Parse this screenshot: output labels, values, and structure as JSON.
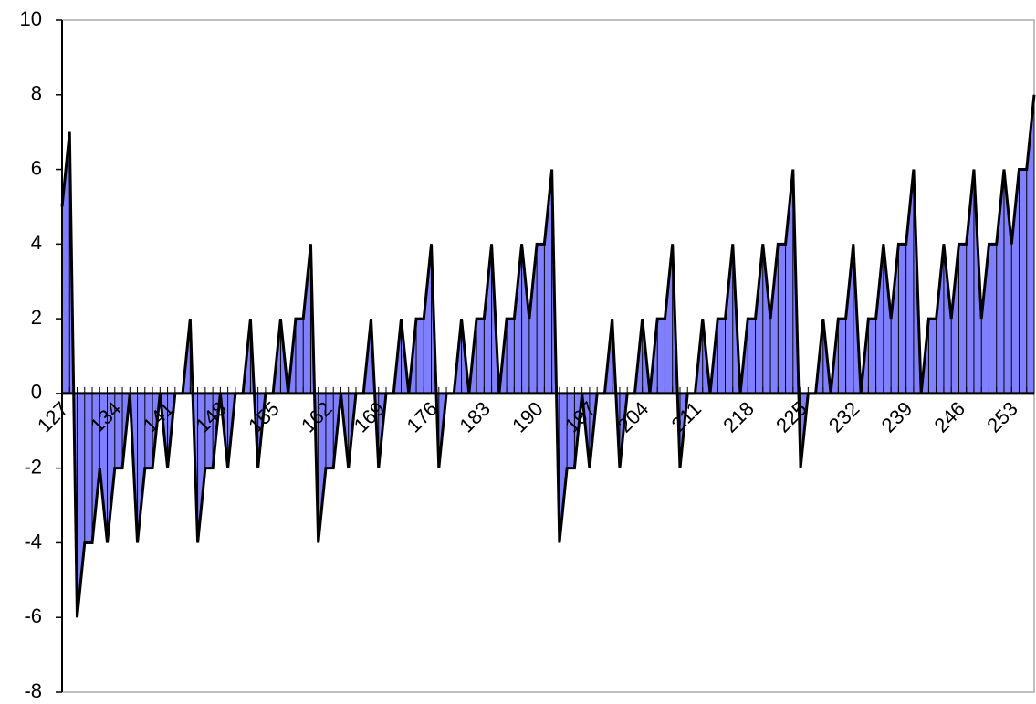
{
  "chart_data": {
    "type": "area",
    "categories": [
      "127",
      null,
      null,
      null,
      null,
      null,
      null,
      "134",
      null,
      null,
      null,
      null,
      null,
      null,
      "141",
      null,
      null,
      null,
      null,
      null,
      null,
      "148",
      null,
      null,
      null,
      null,
      null,
      null,
      "155",
      null,
      null,
      null,
      null,
      null,
      null,
      "162",
      null,
      null,
      null,
      null,
      null,
      null,
      "169",
      null,
      null,
      null,
      null,
      null,
      null,
      "176",
      null,
      null,
      null,
      null,
      null,
      null,
      "183",
      null,
      null,
      null,
      null,
      null,
      null,
      "190",
      null,
      null,
      null,
      null,
      null,
      null,
      "197",
      null,
      null,
      null,
      null,
      null,
      null,
      "204",
      null,
      null,
      null,
      null,
      null,
      null,
      "211",
      null,
      null,
      null,
      null,
      null,
      null,
      "218",
      null,
      null,
      null,
      null,
      null,
      null,
      "225",
      null,
      null,
      null,
      null,
      null,
      null,
      "232",
      null,
      null,
      null,
      null,
      null,
      null,
      "239",
      null,
      null,
      null,
      null,
      null,
      null,
      "246",
      null,
      null,
      null,
      null,
      null,
      null,
      "253",
      null,
      null,
      null
    ],
    "values": [
      5,
      7,
      -6,
      -4,
      -4,
      -2,
      -4,
      -2,
      -2,
      0,
      -4,
      -2,
      -2,
      0,
      -2,
      0,
      0,
      2,
      -4,
      -2,
      -2,
      0,
      -2,
      0,
      0,
      2,
      -2,
      0,
      0,
      2,
      0,
      2,
      2,
      4,
      -4,
      -2,
      -2,
      0,
      -2,
      0,
      0,
      2,
      -2,
      0,
      0,
      2,
      0,
      2,
      2,
      4,
      -2,
      0,
      0,
      2,
      0,
      2,
      2,
      4,
      0,
      2,
      2,
      4,
      2,
      4,
      4,
      6,
      -4,
      -2,
      -2,
      0,
      -2,
      0,
      0,
      2,
      -2,
      0,
      0,
      2,
      0,
      2,
      2,
      4,
      -2,
      0,
      0,
      2,
      0,
      2,
      2,
      4,
      0,
      2,
      2,
      4,
      2,
      4,
      4,
      6,
      -2,
      0,
      0,
      2,
      0,
      2,
      2,
      4,
      0,
      2,
      2,
      4,
      2,
      4,
      4,
      6,
      0,
      2,
      2,
      4,
      2,
      4,
      4,
      6,
      2,
      4,
      4,
      6,
      4,
      6,
      6,
      8
    ],
    "color": "#8080ff",
    "line_color": "#000000",
    "ylim": [
      -8,
      10
    ],
    "yticks": [
      -8,
      -6,
      -4,
      -2,
      0,
      2,
      4,
      6,
      8,
      10
    ]
  }
}
